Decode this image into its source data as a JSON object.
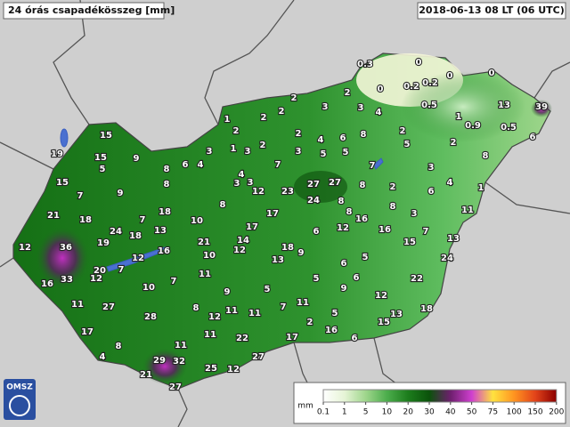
{
  "header": {
    "title": "24 órás csapadékösszeg [mm]",
    "datetime": "2018-06-13 08 LT (06 UTC)"
  },
  "logo": "OMSZ",
  "stations": [
    0.3,
    0,
    0,
    0,
    0,
    0.2,
    0.2,
    2,
    0.5,
    13,
    39,
    1,
    0.9,
    0.5,
    6,
    2,
    2,
    5,
    8,
    3,
    4,
    1,
    6,
    2,
    8,
    3,
    11,
    7,
    15,
    13,
    24,
    22,
    18,
    13,
    15,
    12,
    2,
    3,
    3,
    4,
    2,
    2,
    1,
    2,
    1,
    2,
    2,
    4,
    6,
    8,
    3,
    5,
    5,
    7,
    3,
    3,
    4,
    6,
    4,
    3,
    3,
    7,
    27,
    27,
    23,
    24,
    12,
    8,
    17,
    8,
    8,
    8,
    16,
    16,
    12,
    6,
    17,
    14,
    12,
    21,
    10,
    10,
    18,
    9,
    13,
    6,
    5,
    5,
    5,
    7,
    11,
    5,
    9,
    6,
    11,
    9,
    11,
    11,
    12,
    8,
    2,
    16,
    6,
    17,
    22,
    11,
    27,
    25,
    12,
    19,
    15,
    15,
    9,
    5,
    15,
    7,
    9,
    8,
    8,
    21,
    18,
    18,
    7,
    24,
    18,
    13,
    19,
    36,
    12,
    16,
    12,
    20,
    7,
    12,
    16,
    33,
    10,
    7,
    11,
    27,
    28,
    17,
    8,
    4,
    11,
    29,
    32,
    21,
    27
  ],
  "legend": {
    "unit": "mm",
    "ticks": [
      0.1,
      1,
      5,
      10,
      20,
      30,
      40,
      50,
      75,
      100,
      150,
      200
    ],
    "colors": [
      "#ffffff",
      "#e6f4d6",
      "#9fd68c",
      "#4cad4c",
      "#1c7d1c",
      "#0b520b",
      "#6e1f6e",
      "#cf3fcf",
      "#ffe23f",
      "#ff9420",
      "#e2431a",
      "#8b0000"
    ]
  }
}
